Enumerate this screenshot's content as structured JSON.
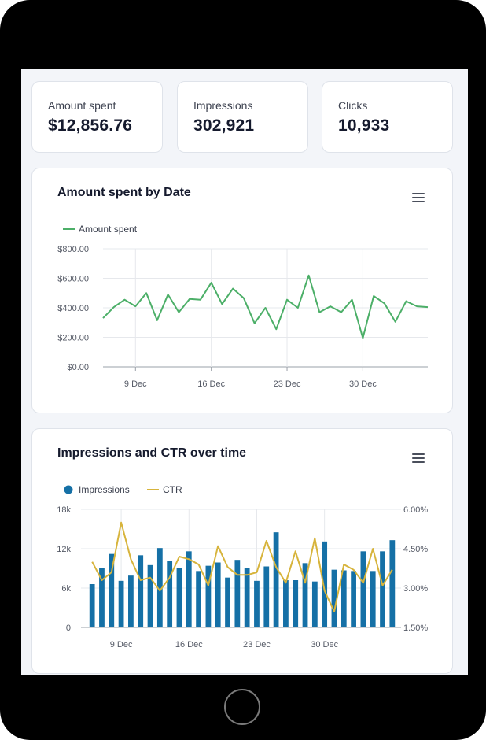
{
  "kpis": [
    {
      "label": "Amount spent",
      "value": "$12,856.76"
    },
    {
      "label": "Impressions",
      "value": "302,921"
    },
    {
      "label": "Clicks",
      "value": "10,933"
    }
  ],
  "colors": {
    "spend_line": "#4caf68",
    "impressions_bar": "#1570a6",
    "ctr_line": "#d7b43c",
    "grid": "#e6e8ec",
    "axis_text": "#555a66"
  },
  "icons": {
    "menu": "hamburger-menu-icon",
    "home": "home-button"
  },
  "chart_data": [
    {
      "type": "line",
      "title": "Amount spent by Date",
      "legend_placement": "top-left",
      "x_ticks": [
        "9 Dec",
        "16 Dec",
        "23 Dec",
        "30 Dec"
      ],
      "y_ticks": [
        "$0.00",
        "$200.00",
        "$400.00",
        "$600.00",
        "$800.00"
      ],
      "ylim": [
        0,
        800
      ],
      "x_start": "6 Dec",
      "grid": true,
      "series": [
        {
          "name": "Amount spent",
          "values": [
            330,
            405,
            455,
            410,
            500,
            315,
            490,
            370,
            460,
            455,
            570,
            425,
            530,
            465,
            295,
            400,
            255,
            455,
            400,
            620,
            370,
            410,
            370,
            455,
            195,
            480,
            430,
            305,
            445,
            410,
            405
          ]
        }
      ]
    },
    {
      "type": "bar",
      "title": "Impressions and CTR over time",
      "legend_placement": "top-left",
      "x_ticks": [
        "9 Dec",
        "16 Dec",
        "23 Dec",
        "30 Dec"
      ],
      "y_left_ticks": [
        "0",
        "6k",
        "12k",
        "18k"
      ],
      "y_right_ticks": [
        "1.50%",
        "3.00%",
        "4.50%",
        "6.00%"
      ],
      "ylim_left": [
        0,
        18000
      ],
      "ylim_right": [
        1.5,
        6.0
      ],
      "x_start": "6 Dec",
      "grid": true,
      "series": [
        {
          "name": "Impressions",
          "axis": "left",
          "type": "bar",
          "values": [
            6600,
            9000,
            11200,
            7100,
            7900,
            11000,
            9500,
            12100,
            10200,
            9100,
            11600,
            8600,
            9400,
            9900,
            7600,
            10300,
            9100,
            7100,
            9300,
            14500,
            7200,
            7200,
            9800,
            7000,
            13100,
            8800,
            8700,
            8600,
            11600,
            8600,
            11600,
            13300
          ]
        },
        {
          "name": "CTR",
          "axis": "right",
          "type": "line",
          "values": [
            4.0,
            3.3,
            3.6,
            5.5,
            4.1,
            3.3,
            3.4,
            2.9,
            3.4,
            4.2,
            4.1,
            3.9,
            3.1,
            4.6,
            3.8,
            3.5,
            3.5,
            3.6,
            4.8,
            3.8,
            3.2,
            4.4,
            3.2,
            4.9,
            2.9,
            2.1,
            3.9,
            3.7,
            3.2,
            4.5,
            3.1,
            3.7
          ]
        }
      ]
    }
  ]
}
